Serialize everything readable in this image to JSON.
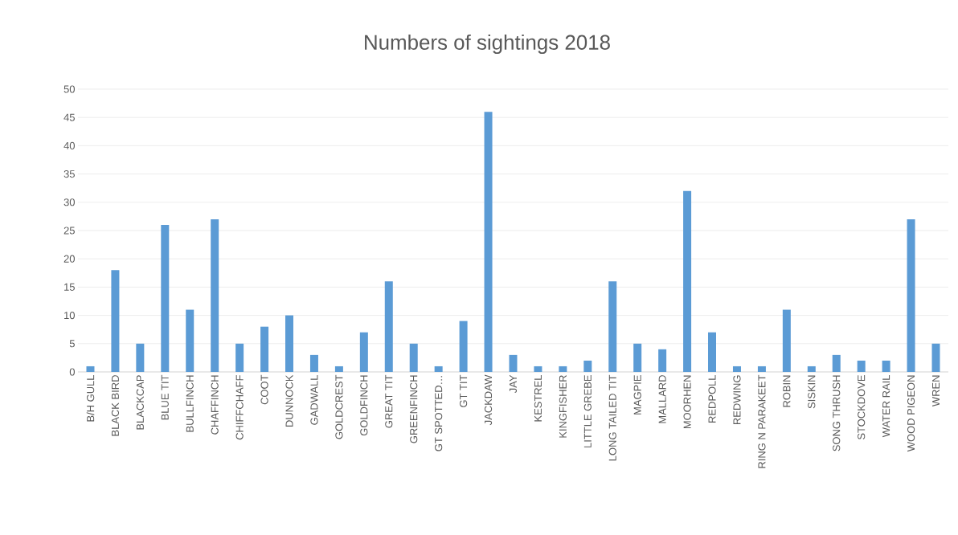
{
  "chart_data": {
    "type": "bar",
    "title": "Numbers of sightings 2018",
    "categories": [
      "B/H GULL",
      "BLACK BIRD",
      "BLACKCAP",
      "BLUE TIT",
      "BULLFINCH",
      "CHAFFINCH",
      "CHIFFCHAFF",
      "COOT",
      "DUNNOCK",
      "GADWALL",
      "GOLDCREST",
      "GOLDFINCH",
      "GREAT TIT",
      "GREENFINCH",
      "GT SPOTTED…",
      "GT TIT",
      "JACKDAW",
      "JAY",
      "KESTREL",
      "KINGFISHER",
      "LITTLE GREBE",
      "LONG TAILED TIT",
      "MAGPIE",
      "MALLARD",
      "MOORHEN",
      "REDPOLL",
      "REDWING",
      "RING N PARAKEET",
      "ROBIN",
      "SISKIN",
      "SONG THRUSH",
      "STOCKDOVE",
      "WATER RAIL",
      "WOOD PIGEON",
      "WREN"
    ],
    "values": [
      1,
      18,
      5,
      26,
      11,
      27,
      5,
      8,
      10,
      3,
      1,
      7,
      16,
      5,
      1,
      9,
      46,
      3,
      1,
      1,
      2,
      16,
      5,
      4,
      32,
      7,
      1,
      1,
      11,
      1,
      3,
      2,
      2,
      27,
      5
    ],
    "color": "#5b9bd5",
    "ylim": [
      0,
      50
    ],
    "yticks": [
      0,
      5,
      10,
      15,
      20,
      25,
      30,
      35,
      40,
      45,
      50
    ],
    "grid": "y"
  }
}
